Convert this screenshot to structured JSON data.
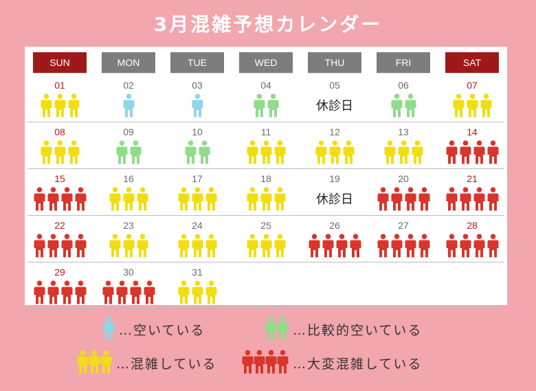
{
  "title": "3月混雑予想カレンダー",
  "colors": {
    "background": "#f2a6ae",
    "weekend_header": "#9e1a1a",
    "weekday_header": "#7d7d7d",
    "empty": "#8ed6ea",
    "fairly_empty": "#8fdc8a",
    "crowded": "#f1de12",
    "very_crowded": "#d8352c"
  },
  "weekdays": [
    "SUN",
    "MON",
    "TUE",
    "WED",
    "THU",
    "FRI",
    "SAT"
  ],
  "closed_label": "休診日",
  "weeks": [
    [
      {
        "day": "01",
        "level": "crowded"
      },
      {
        "day": "02",
        "level": "empty"
      },
      {
        "day": "03",
        "level": "empty"
      },
      {
        "day": "04",
        "level": "fairly_empty"
      },
      {
        "day": "05",
        "level": "closed"
      },
      {
        "day": "06",
        "level": "fairly_empty"
      },
      {
        "day": "07",
        "level": "crowded"
      }
    ],
    [
      {
        "day": "08",
        "level": "crowded"
      },
      {
        "day": "09",
        "level": "fairly_empty"
      },
      {
        "day": "10",
        "level": "fairly_empty"
      },
      {
        "day": "11",
        "level": "crowded"
      },
      {
        "day": "12",
        "level": "crowded"
      },
      {
        "day": "13",
        "level": "crowded"
      },
      {
        "day": "14",
        "level": "very_crowded"
      }
    ],
    [
      {
        "day": "15",
        "level": "very_crowded"
      },
      {
        "day": "16",
        "level": "crowded"
      },
      {
        "day": "17",
        "level": "crowded"
      },
      {
        "day": "18",
        "level": "crowded"
      },
      {
        "day": "19",
        "level": "closed"
      },
      {
        "day": "20",
        "level": "very_crowded"
      },
      {
        "day": "21",
        "level": "very_crowded"
      }
    ],
    [
      {
        "day": "22",
        "level": "very_crowded"
      },
      {
        "day": "23",
        "level": "crowded"
      },
      {
        "day": "24",
        "level": "crowded"
      },
      {
        "day": "25",
        "level": "crowded"
      },
      {
        "day": "26",
        "level": "very_crowded"
      },
      {
        "day": "27",
        "level": "very_crowded"
      },
      {
        "day": "28",
        "level": "very_crowded"
      }
    ],
    [
      {
        "day": "29",
        "level": "very_crowded"
      },
      {
        "day": "30",
        "level": "very_crowded"
      },
      {
        "day": "31",
        "level": "crowded"
      }
    ]
  ],
  "legend": {
    "empty": "…空いている",
    "fairly_empty": "…比較的空いている",
    "crowded": "…混雑している",
    "very_crowded": "…大変混雑している"
  }
}
